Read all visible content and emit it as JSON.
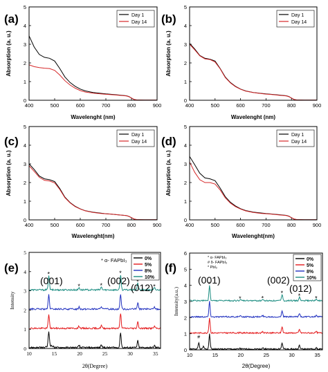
{
  "panels": [
    {
      "id": "a",
      "label": "(a)"
    },
    {
      "id": "b",
      "label": "(b)"
    },
    {
      "id": "c",
      "label": "(c)"
    },
    {
      "id": "d",
      "label": "(d)"
    },
    {
      "id": "e",
      "label": "(e)"
    },
    {
      "id": "f",
      "label": "(f)"
    }
  ],
  "chart_data": [
    {
      "panel": "a",
      "type": "line",
      "xlabel": "Wavelenght (nm)",
      "ylabel": "Absorption (a. u.)",
      "xlim": [
        400,
        900
      ],
      "ylim": [
        0,
        5
      ],
      "xticks": [
        400,
        500,
        600,
        700,
        800,
        900
      ],
      "yticks": [
        0,
        1,
        2,
        3,
        4,
        5
      ],
      "legend": "top-right",
      "series": [
        {
          "name": "Day 1",
          "color": "#000000",
          "x": [
            400,
            420,
            440,
            460,
            480,
            500,
            520,
            540,
            560,
            580,
            600,
            620,
            650,
            680,
            700,
            720,
            750,
            780,
            790,
            800,
            810,
            820,
            850,
            900
          ],
          "y": [
            3.45,
            2.85,
            2.45,
            2.3,
            2.25,
            2.1,
            1.7,
            1.25,
            0.95,
            0.75,
            0.6,
            0.5,
            0.42,
            0.37,
            0.34,
            0.32,
            0.28,
            0.24,
            0.2,
            0.12,
            0.04,
            0.02,
            0.01,
            0.01
          ]
        },
        {
          "name": "Day 14",
          "color": "#d62728",
          "x": [
            400,
            420,
            440,
            460,
            480,
            500,
            520,
            540,
            560,
            580,
            600,
            620,
            650,
            680,
            700,
            720,
            750,
            780,
            790,
            800,
            810,
            820,
            850,
            900
          ],
          "y": [
            1.9,
            1.8,
            1.75,
            1.72,
            1.7,
            1.6,
            1.35,
            1.05,
            0.82,
            0.65,
            0.52,
            0.44,
            0.38,
            0.34,
            0.32,
            0.3,
            0.27,
            0.23,
            0.19,
            0.12,
            0.05,
            0.02,
            0.01,
            0.01
          ]
        }
      ]
    },
    {
      "panel": "b",
      "type": "line",
      "xlabel": "Wavelenght (nm)",
      "ylabel": "Absorption (a. u.)",
      "xlim": [
        400,
        900
      ],
      "ylim": [
        0,
        5
      ],
      "xticks": [
        400,
        500,
        600,
        700,
        800,
        900
      ],
      "yticks": [
        0,
        1,
        2,
        3,
        4,
        5
      ],
      "legend": "top-right",
      "series": [
        {
          "name": "Day 1",
          "color": "#000000",
          "x": [
            400,
            420,
            440,
            460,
            480,
            500,
            520,
            540,
            560,
            580,
            600,
            620,
            650,
            680,
            700,
            720,
            750,
            780,
            790,
            800,
            810,
            820,
            850,
            900
          ],
          "y": [
            3.05,
            2.75,
            2.4,
            2.25,
            2.2,
            2.1,
            1.7,
            1.25,
            0.95,
            0.75,
            0.6,
            0.5,
            0.42,
            0.37,
            0.34,
            0.32,
            0.28,
            0.24,
            0.2,
            0.12,
            0.04,
            0.02,
            0.01,
            0.01
          ]
        },
        {
          "name": "Day 14",
          "color": "#d62728",
          "x": [
            400,
            420,
            440,
            460,
            480,
            500,
            520,
            540,
            560,
            580,
            600,
            620,
            650,
            680,
            700,
            720,
            750,
            780,
            790,
            800,
            810,
            820,
            850,
            900
          ],
          "y": [
            3.0,
            2.7,
            2.38,
            2.22,
            2.18,
            2.05,
            1.68,
            1.22,
            0.93,
            0.73,
            0.59,
            0.49,
            0.41,
            0.36,
            0.33,
            0.31,
            0.27,
            0.23,
            0.19,
            0.12,
            0.05,
            0.02,
            0.01,
            0.01
          ]
        }
      ]
    },
    {
      "panel": "c",
      "type": "line",
      "xlabel": "Wavelenght(nm)",
      "ylabel": "Absorption (a. u.)",
      "xlim": [
        400,
        900
      ],
      "ylim": [
        0,
        5
      ],
      "xticks": [
        400,
        500,
        600,
        700,
        800,
        900
      ],
      "yticks": [
        0,
        1,
        2,
        3,
        4,
        5
      ],
      "legend": "top-right",
      "series": [
        {
          "name": "Day 1",
          "color": "#000000",
          "x": [
            400,
            420,
            440,
            460,
            480,
            500,
            520,
            540,
            560,
            580,
            600,
            620,
            650,
            680,
            700,
            720,
            750,
            780,
            790,
            800,
            810,
            820,
            850,
            900
          ],
          "y": [
            3.0,
            2.7,
            2.35,
            2.2,
            2.15,
            2.05,
            1.68,
            1.22,
            0.93,
            0.73,
            0.59,
            0.49,
            0.41,
            0.36,
            0.33,
            0.31,
            0.27,
            0.23,
            0.19,
            0.12,
            0.04,
            0.02,
            0.01,
            0.01
          ]
        },
        {
          "name": "Day 14",
          "color": "#d62728",
          "x": [
            400,
            420,
            440,
            460,
            480,
            500,
            520,
            540,
            560,
            580,
            600,
            620,
            650,
            680,
            700,
            720,
            750,
            780,
            790,
            800,
            810,
            820,
            850,
            900
          ],
          "y": [
            2.9,
            2.6,
            2.28,
            2.12,
            2.08,
            1.98,
            1.63,
            1.19,
            0.91,
            0.71,
            0.58,
            0.48,
            0.4,
            0.35,
            0.33,
            0.31,
            0.27,
            0.23,
            0.19,
            0.12,
            0.05,
            0.02,
            0.01,
            0.01
          ]
        }
      ]
    },
    {
      "panel": "d",
      "type": "line",
      "xlabel": "Wavelenght(nm)",
      "ylabel": "Absorption (a. u.)",
      "xlim": [
        400,
        900
      ],
      "ylim": [
        0,
        5
      ],
      "xticks": [
        400,
        500,
        600,
        700,
        800,
        900
      ],
      "yticks": [
        0,
        1,
        2,
        3,
        4,
        5
      ],
      "legend": "top-right",
      "series": [
        {
          "name": "Day 1",
          "color": "#000000",
          "x": [
            400,
            420,
            440,
            460,
            480,
            500,
            520,
            540,
            560,
            580,
            600,
            620,
            650,
            680,
            700,
            720,
            750,
            780,
            790,
            800,
            810,
            820,
            850,
            900
          ],
          "y": [
            3.4,
            2.95,
            2.5,
            2.25,
            2.2,
            2.1,
            1.7,
            1.25,
            0.95,
            0.75,
            0.6,
            0.5,
            0.42,
            0.37,
            0.34,
            0.32,
            0.28,
            0.24,
            0.2,
            0.12,
            0.04,
            0.02,
            0.01,
            0.01
          ]
        },
        {
          "name": "Day 14",
          "color": "#d62728",
          "x": [
            400,
            420,
            440,
            460,
            480,
            500,
            520,
            540,
            560,
            580,
            600,
            620,
            650,
            680,
            700,
            720,
            750,
            780,
            790,
            800,
            810,
            820,
            850,
            900
          ],
          "y": [
            3.1,
            2.55,
            2.15,
            2.0,
            2.0,
            1.92,
            1.6,
            1.18,
            0.9,
            0.71,
            0.58,
            0.48,
            0.4,
            0.35,
            0.33,
            0.31,
            0.27,
            0.23,
            0.19,
            0.12,
            0.05,
            0.02,
            0.01,
            0.01
          ]
        }
      ]
    },
    {
      "panel": "e",
      "type": "line",
      "xlabel": "2θ(Degree)",
      "ylabel": "Intensity",
      "xlim": [
        10,
        36
      ],
      "ylim": [
        0,
        5
      ],
      "xticks": [
        10,
        15,
        20,
        25,
        30,
        35
      ],
      "yticks": [
        0,
        1,
        2,
        3,
        4,
        5
      ],
      "legend": "top-right",
      "peak_legend": "* α- FAPbI₃",
      "annotations": [
        "(001)",
        "(002)",
        "(012)"
      ],
      "peaks": [
        {
          "x": 13.9,
          "h": 0.75
        },
        {
          "x": 19.9,
          "h": 0.12
        },
        {
          "x": 24.3,
          "h": 0.15
        },
        {
          "x": 28.1,
          "h": 0.8
        },
        {
          "x": 31.5,
          "h": 0.35
        },
        {
          "x": 34.8,
          "h": 0.1
        }
      ],
      "star_positions": [
        13.9,
        19.9,
        24.3,
        28.1,
        31.5,
        34.8
      ],
      "series": [
        {
          "name": "0%",
          "color": "#000000",
          "offset": 0
        },
        {
          "name": "5%",
          "color": "#e41a1c",
          "offset": 1
        },
        {
          "name": "8%",
          "color": "#1f2fbf",
          "offset": 2
        },
        {
          "name": "10%",
          "color": "#1a8c80",
          "offset": 3
        }
      ]
    },
    {
      "panel": "f",
      "type": "line",
      "xlabel": "2θ(Degree)",
      "ylabel": "Intensity(a.u.)",
      "xlim": [
        10,
        36
      ],
      "ylim": [
        0,
        6
      ],
      "xticks": [
        10,
        15,
        20,
        25,
        30,
        35
      ],
      "yticks": [
        0,
        1,
        2,
        3,
        4,
        5,
        6
      ],
      "legend": "top-right",
      "peak_legend": [
        "* α- FAPbI₃",
        "# δ- FAPbI₃",
        "* PbI₂"
      ],
      "annotations": [
        "(001)",
        "(002)",
        "(012)"
      ],
      "peaks": [
        {
          "x": 13.9,
          "h": 0.95
        },
        {
          "x": 19.9,
          "h": 0.05
        },
        {
          "x": 24.3,
          "h": 0.08
        },
        {
          "x": 28.1,
          "h": 0.4
        },
        {
          "x": 31.5,
          "h": 0.22
        },
        {
          "x": 34.8,
          "h": 0.08
        }
      ],
      "bottom_extra_peaks": [
        {
          "x": 11.8,
          "h": 0.4
        },
        {
          "x": 12.7,
          "h": 0.15
        }
      ],
      "star_positions": [
        13.9,
        19.9,
        24.3,
        28.1,
        31.5,
        34.8
      ],
      "series": [
        {
          "name": "0%",
          "color": "#000000",
          "offset": 0
        },
        {
          "name": "5%",
          "color": "#e41a1c",
          "offset": 1
        },
        {
          "name": "8%",
          "color": "#1f2fbf",
          "offset": 2
        },
        {
          "name": "10%",
          "color": "#1a8c80",
          "offset": 3
        }
      ]
    }
  ]
}
